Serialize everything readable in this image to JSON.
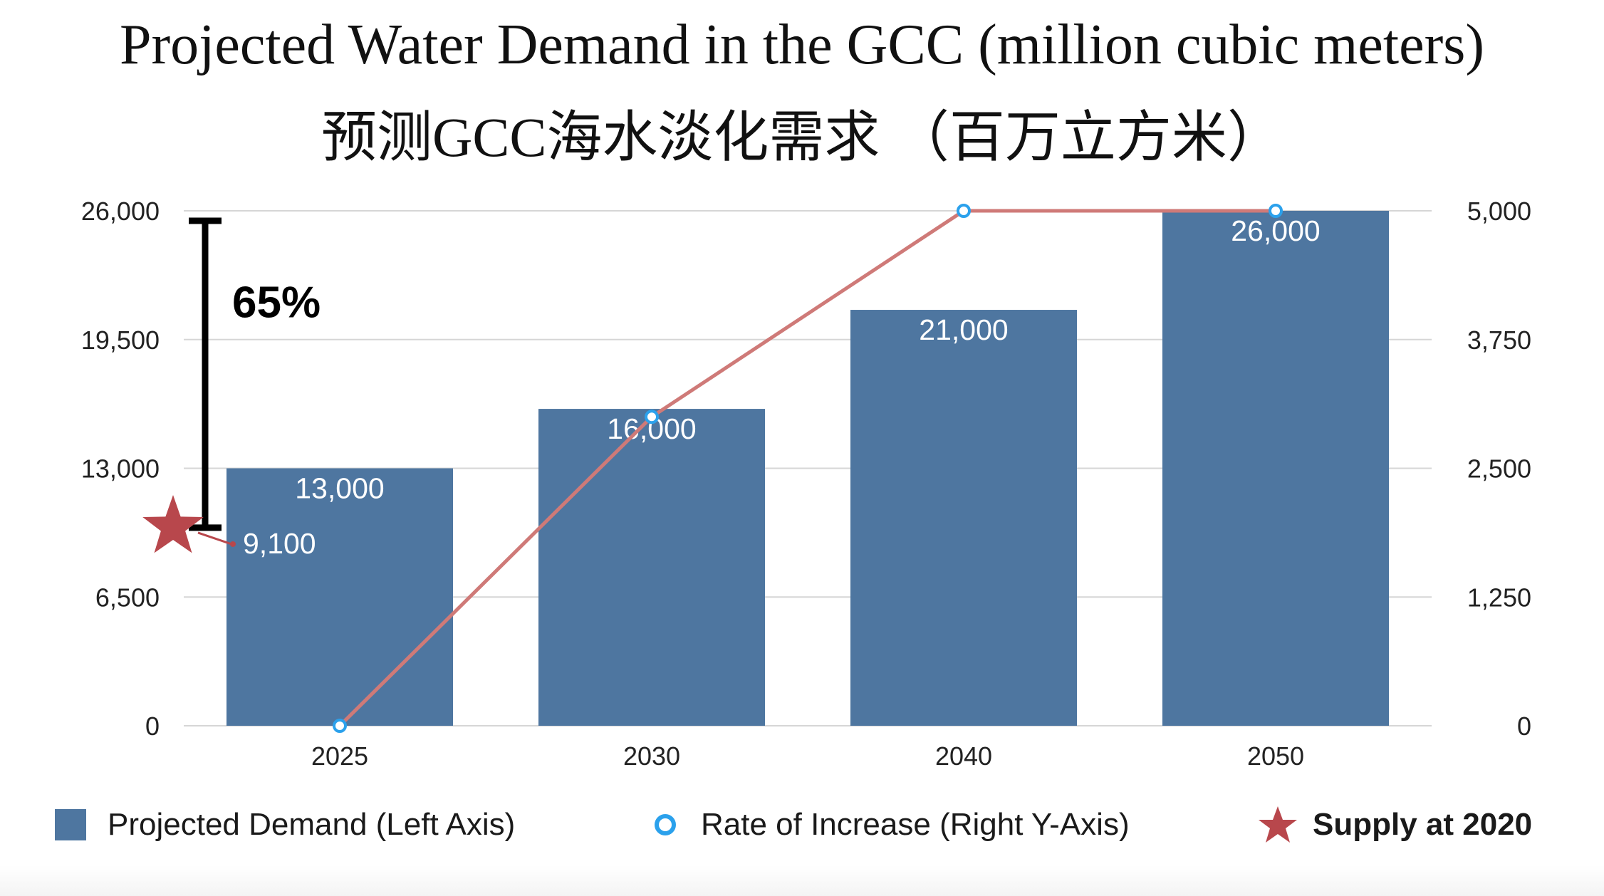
{
  "title": "Projected Water Demand in the GCC (million cubic meters)",
  "title_zh": "预测GCC海水淡化需求 （百万立方米）",
  "colors": {
    "bar": "#4e76a0",
    "line": "#cf7a78",
    "marker_stroke": "#2ba1ec",
    "star": "#b8474c",
    "grid": "#d6d6d6",
    "bracket": "#000000"
  },
  "chart_data": {
    "type": "bar",
    "categories": [
      "2025",
      "2030",
      "2040",
      "2050"
    ],
    "series": [
      {
        "name": "Projected Demand (Left Axis)",
        "type": "bar",
        "axis": "left",
        "values": [
          13000,
          16000,
          21000,
          26000
        ],
        "data_labels": [
          "13,000",
          "16,000",
          "21,000",
          "26,000"
        ]
      },
      {
        "name": "Rate of Increase (Right Y-Axis)",
        "type": "line",
        "axis": "right",
        "values": [
          0,
          3000,
          5000,
          5000
        ]
      }
    ],
    "left_axis": {
      "ylim": [
        0,
        26000
      ],
      "ticks": [
        "0",
        "6,500",
        "13,000",
        "19,500",
        "26,000"
      ]
    },
    "right_axis": {
      "ylim": [
        0,
        5000
      ],
      "ticks": [
        "0",
        "1,250",
        "2,500",
        "3,750",
        "5,000"
      ]
    },
    "grid": true,
    "legend_position": "bottom",
    "annotations": {
      "supply_2020": {
        "name": "Supply at 2020",
        "value": 9100,
        "label": "9,100"
      },
      "increase_bracket": {
        "from": 10000,
        "to": 26000,
        "label": "65%"
      }
    }
  }
}
